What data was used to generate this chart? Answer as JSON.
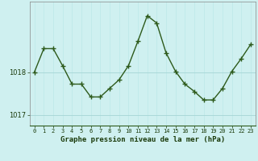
{
  "hours": [
    0,
    1,
    2,
    3,
    4,
    5,
    6,
    7,
    8,
    9,
    10,
    11,
    12,
    13,
    14,
    15,
    16,
    17,
    18,
    19,
    20,
    21,
    22,
    23
  ],
  "pressure": [
    1018.0,
    1018.55,
    1018.55,
    1018.15,
    1017.72,
    1017.72,
    1017.42,
    1017.42,
    1017.62,
    1017.82,
    1018.15,
    1018.72,
    1019.32,
    1019.15,
    1018.45,
    1018.02,
    1017.72,
    1017.55,
    1017.35,
    1017.35,
    1017.62,
    1018.02,
    1018.32,
    1018.65
  ],
  "ylim": [
    1016.75,
    1019.65
  ],
  "yticks": [
    1017.0,
    1018.0
  ],
  "xlabel": "Graphe pression niveau de la mer (hPa)",
  "line_color": "#2d5a1b",
  "bg_color": "#cff0f0",
  "grid_color_h": "#aad8d8",
  "grid_color_v": "#bce8e8",
  "marker": "+",
  "marker_size": 4,
  "linewidth": 1.0
}
